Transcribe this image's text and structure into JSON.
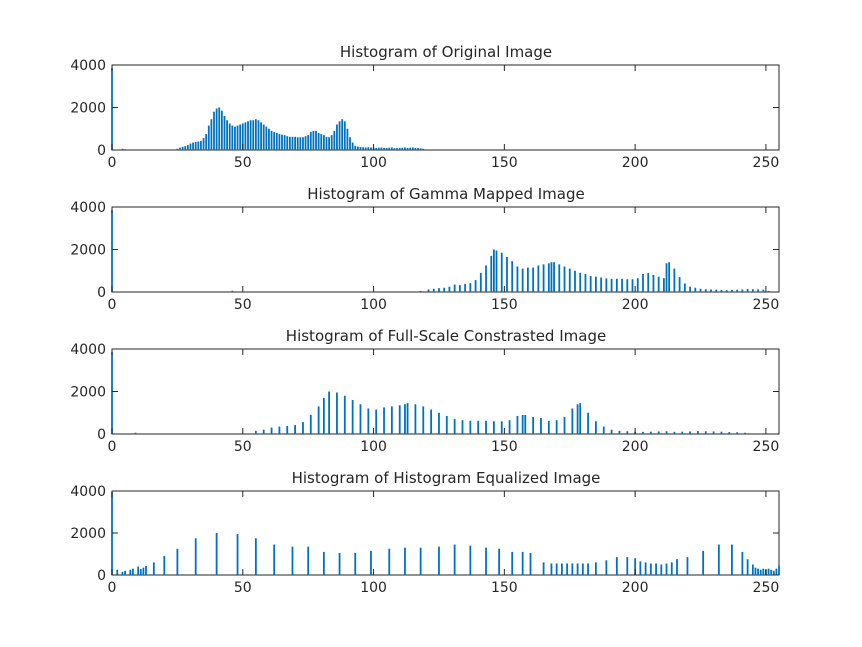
{
  "figure": {
    "background": "#ffffff",
    "bar_color": "#0072BD"
  },
  "chart_data": [
    {
      "type": "bar",
      "title": "Histogram of Original Image",
      "xlabel": "",
      "ylabel": "",
      "xlim": [
        0,
        255
      ],
      "ylim": [
        0,
        4000
      ],
      "xticks": [
        0,
        50,
        100,
        150,
        200,
        250
      ],
      "yticks": [
        0,
        2000,
        4000
      ],
      "grid": false,
      "x": [
        0,
        4,
        5,
        25,
        26,
        27,
        28,
        29,
        30,
        31,
        32,
        33,
        34,
        35,
        36,
        37,
        38,
        39,
        40,
        41,
        42,
        43,
        44,
        45,
        46,
        47,
        48,
        49,
        50,
        51,
        52,
        53,
        54,
        55,
        56,
        57,
        58,
        59,
        60,
        61,
        62,
        63,
        64,
        65,
        66,
        67,
        68,
        69,
        70,
        71,
        72,
        73,
        74,
        75,
        76,
        77,
        78,
        79,
        80,
        81,
        82,
        83,
        84,
        85,
        86,
        87,
        88,
        89,
        90,
        91,
        92,
        93,
        94,
        95,
        96,
        97,
        98,
        99,
        100,
        101,
        102,
        103,
        104,
        105,
        106,
        107,
        108,
        109,
        110,
        111,
        112,
        113,
        114,
        115,
        116,
        117,
        118,
        119,
        120
      ],
      "values": [
        3850,
        60,
        40,
        60,
        110,
        150,
        180,
        230,
        300,
        350,
        380,
        400,
        420,
        560,
        750,
        1150,
        1450,
        1800,
        1950,
        2000,
        1850,
        1600,
        1400,
        1250,
        1150,
        1100,
        1150,
        1200,
        1250,
        1300,
        1350,
        1400,
        1400,
        1450,
        1400,
        1300,
        1200,
        1100,
        1000,
        900,
        850,
        800,
        750,
        720,
        700,
        650,
        620,
        620,
        620,
        600,
        600,
        600,
        650,
        700,
        850,
        900,
        900,
        800,
        750,
        700,
        620,
        600,
        700,
        900,
        1200,
        1350,
        1450,
        1350,
        1000,
        600,
        350,
        200,
        160,
        140,
        130,
        120,
        130,
        120,
        110,
        100,
        110,
        120,
        100,
        100,
        110,
        120,
        90,
        90,
        100,
        110,
        120,
        100,
        110,
        120,
        100,
        90,
        80,
        60,
        30
      ]
    },
    {
      "type": "bar",
      "title": "Histogram of Gamma Mapped Image",
      "xlabel": "",
      "ylabel": "",
      "xlim": [
        0,
        255
      ],
      "ylim": [
        0,
        4000
      ],
      "xticks": [
        0,
        50,
        100,
        150,
        200,
        250
      ],
      "yticks": [
        0,
        2000,
        4000
      ],
      "grid": false,
      "x": [
        0,
        46,
        118,
        121,
        123,
        125,
        127,
        129,
        131,
        133,
        135,
        137,
        139,
        141,
        143,
        145,
        146,
        147,
        149,
        151,
        153,
        155,
        157,
        159,
        161,
        163,
        165,
        167,
        168,
        169,
        171,
        173,
        175,
        177,
        179,
        181,
        183,
        185,
        187,
        189,
        191,
        193,
        195,
        197,
        199,
        201,
        203,
        205,
        207,
        209,
        211,
        212,
        213,
        215,
        217,
        219,
        221,
        223,
        225,
        227,
        229,
        231,
        233,
        235,
        237,
        239,
        241,
        243,
        245,
        247,
        249,
        251
      ],
      "values": [
        3850,
        60,
        50,
        120,
        150,
        180,
        200,
        250,
        350,
        320,
        380,
        420,
        560,
        900,
        1250,
        1700,
        2000,
        1950,
        1850,
        1650,
        1450,
        1200,
        1100,
        1150,
        1150,
        1250,
        1300,
        1350,
        1400,
        1400,
        1300,
        1200,
        1100,
        1000,
        900,
        850,
        750,
        720,
        680,
        640,
        620,
        620,
        620,
        600,
        600,
        650,
        850,
        900,
        800,
        720,
        650,
        1350,
        1400,
        1100,
        700,
        400,
        250,
        200,
        150,
        130,
        120,
        110,
        100,
        90,
        100,
        110,
        120,
        140,
        130,
        120,
        110,
        50
      ]
    },
    {
      "type": "bar",
      "title": "Histogram of Full-Scale Constrasted Image",
      "xlabel": "",
      "ylabel": "",
      "xlim": [
        0,
        255
      ],
      "ylim": [
        0,
        4000
      ],
      "xticks": [
        0,
        50,
        100,
        150,
        200,
        250
      ],
      "yticks": [
        0,
        2000,
        4000
      ],
      "grid": false,
      "x": [
        0,
        9,
        55,
        58,
        61,
        64,
        67,
        70,
        73,
        76,
        79,
        81,
        83,
        86,
        89,
        92,
        95,
        98,
        101,
        104,
        107,
        110,
        112,
        113,
        116,
        119,
        122,
        125,
        128,
        131,
        134,
        137,
        140,
        143,
        146,
        149,
        152,
        155,
        157,
        158,
        161,
        164,
        167,
        170,
        173,
        176,
        178,
        179,
        182,
        185,
        188,
        191,
        194,
        197,
        200,
        203,
        206,
        209,
        212,
        215,
        218,
        221,
        224,
        227,
        230,
        233,
        236,
        239,
        242
      ],
      "values": [
        3850,
        60,
        150,
        200,
        300,
        350,
        380,
        420,
        560,
        900,
        1300,
        1700,
        2000,
        1950,
        1800,
        1600,
        1400,
        1200,
        1150,
        1250,
        1300,
        1350,
        1400,
        1450,
        1400,
        1300,
        1150,
        1000,
        850,
        700,
        650,
        620,
        620,
        620,
        600,
        600,
        650,
        850,
        900,
        900,
        800,
        750,
        620,
        650,
        800,
        1200,
        1400,
        1450,
        1000,
        600,
        350,
        200,
        150,
        130,
        110,
        100,
        110,
        120,
        130,
        100,
        110,
        120,
        140,
        130,
        120,
        110,
        90,
        80,
        60
      ]
    },
    {
      "type": "bar",
      "title": "Histogram of Histogram Equalized Image",
      "xlabel": "",
      "ylabel": "",
      "xlim": [
        0,
        255
      ],
      "ylim": [
        0,
        4000
      ],
      "xticks": [
        0,
        50,
        100,
        150,
        200,
        250
      ],
      "yticks": [
        0,
        2000,
        4000
      ],
      "grid": false,
      "x": [
        0,
        2,
        4,
        5,
        7,
        8,
        10,
        11,
        12,
        13,
        16,
        20,
        25,
        32,
        40,
        48,
        55,
        62,
        69,
        75,
        81,
        87,
        93,
        99,
        106,
        112,
        118,
        125,
        131,
        137,
        143,
        148,
        153,
        157,
        160,
        165,
        168,
        170,
        172,
        174,
        176,
        178,
        180,
        182,
        185,
        189,
        193,
        197,
        200,
        202,
        204,
        206,
        208,
        210,
        212,
        214,
        216,
        220,
        226,
        232,
        237,
        241,
        243,
        245,
        246,
        247,
        248,
        249,
        250,
        251,
        252,
        253,
        254,
        255
      ],
      "values": [
        3950,
        250,
        150,
        200,
        250,
        300,
        400,
        280,
        350,
        430,
        600,
        900,
        1250,
        1750,
        2000,
        1950,
        1750,
        1450,
        1350,
        1350,
        1100,
        1050,
        1050,
        1150,
        1250,
        1300,
        1300,
        1350,
        1450,
        1400,
        1300,
        1250,
        1100,
        1100,
        1050,
        600,
        550,
        550,
        550,
        550,
        550,
        550,
        550,
        550,
        600,
        700,
        850,
        850,
        800,
        650,
        600,
        550,
        550,
        500,
        550,
        600,
        750,
        850,
        1150,
        1450,
        1450,
        1100,
        750,
        500,
        350,
        300,
        250,
        300,
        250,
        300,
        250,
        200,
        300,
        450
      ]
    }
  ]
}
